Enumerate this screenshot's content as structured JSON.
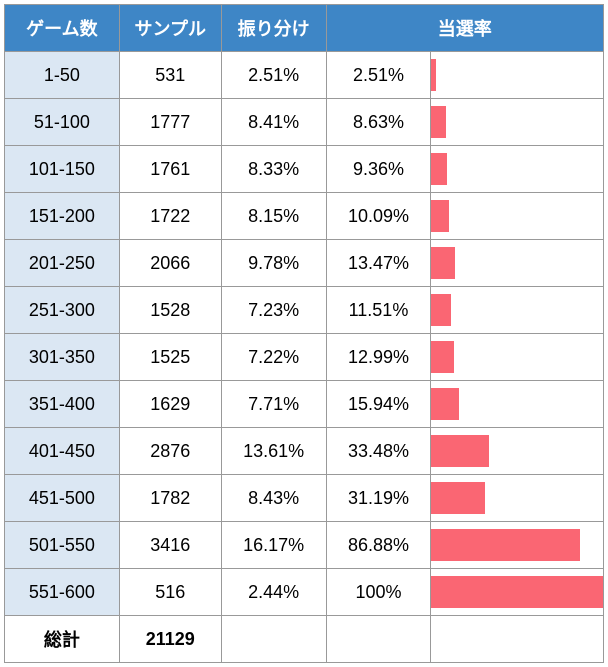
{
  "table": {
    "header_bg": "#3e86c6",
    "header_fg": "#ffffff",
    "range_bg": "#dbe7f3",
    "row_bg": "#ffffff",
    "border_color": "#999999",
    "bar_color": "#fa6673",
    "bar_max": 100,
    "columns": {
      "range": "ゲーム数",
      "sample": "サンプル",
      "distribution": "振り分け",
      "winrate": "当選率"
    },
    "rows": [
      {
        "range": "1-50",
        "sample": "531",
        "dist": "2.51%",
        "pct": "2.51%",
        "val": 2.51
      },
      {
        "range": "51-100",
        "sample": "1777",
        "dist": "8.41%",
        "pct": "8.63%",
        "val": 8.63
      },
      {
        "range": "101-150",
        "sample": "1761",
        "dist": "8.33%",
        "pct": "9.36%",
        "val": 9.36
      },
      {
        "range": "151-200",
        "sample": "1722",
        "dist": "8.15%",
        "pct": "10.09%",
        "val": 10.09
      },
      {
        "range": "201-250",
        "sample": "2066",
        "dist": "9.78%",
        "pct": "13.47%",
        "val": 13.47
      },
      {
        "range": "251-300",
        "sample": "1528",
        "dist": "7.23%",
        "pct": "11.51%",
        "val": 11.51
      },
      {
        "range": "301-350",
        "sample": "1525",
        "dist": "7.22%",
        "pct": "12.99%",
        "val": 12.99
      },
      {
        "range": "351-400",
        "sample": "1629",
        "dist": "7.71%",
        "pct": "15.94%",
        "val": 15.94
      },
      {
        "range": "401-450",
        "sample": "2876",
        "dist": "13.61%",
        "pct": "33.48%",
        "val": 33.48
      },
      {
        "range": "451-500",
        "sample": "1782",
        "dist": "8.43%",
        "pct": "31.19%",
        "val": 31.19
      },
      {
        "range": "501-550",
        "sample": "3416",
        "dist": "16.17%",
        "pct": "86.88%",
        "val": 86.88
      },
      {
        "range": "551-600",
        "sample": "516",
        "dist": "2.44%",
        "pct": "100%",
        "val": 100
      }
    ],
    "totals": {
      "label": "総計",
      "sample": "21129"
    }
  }
}
